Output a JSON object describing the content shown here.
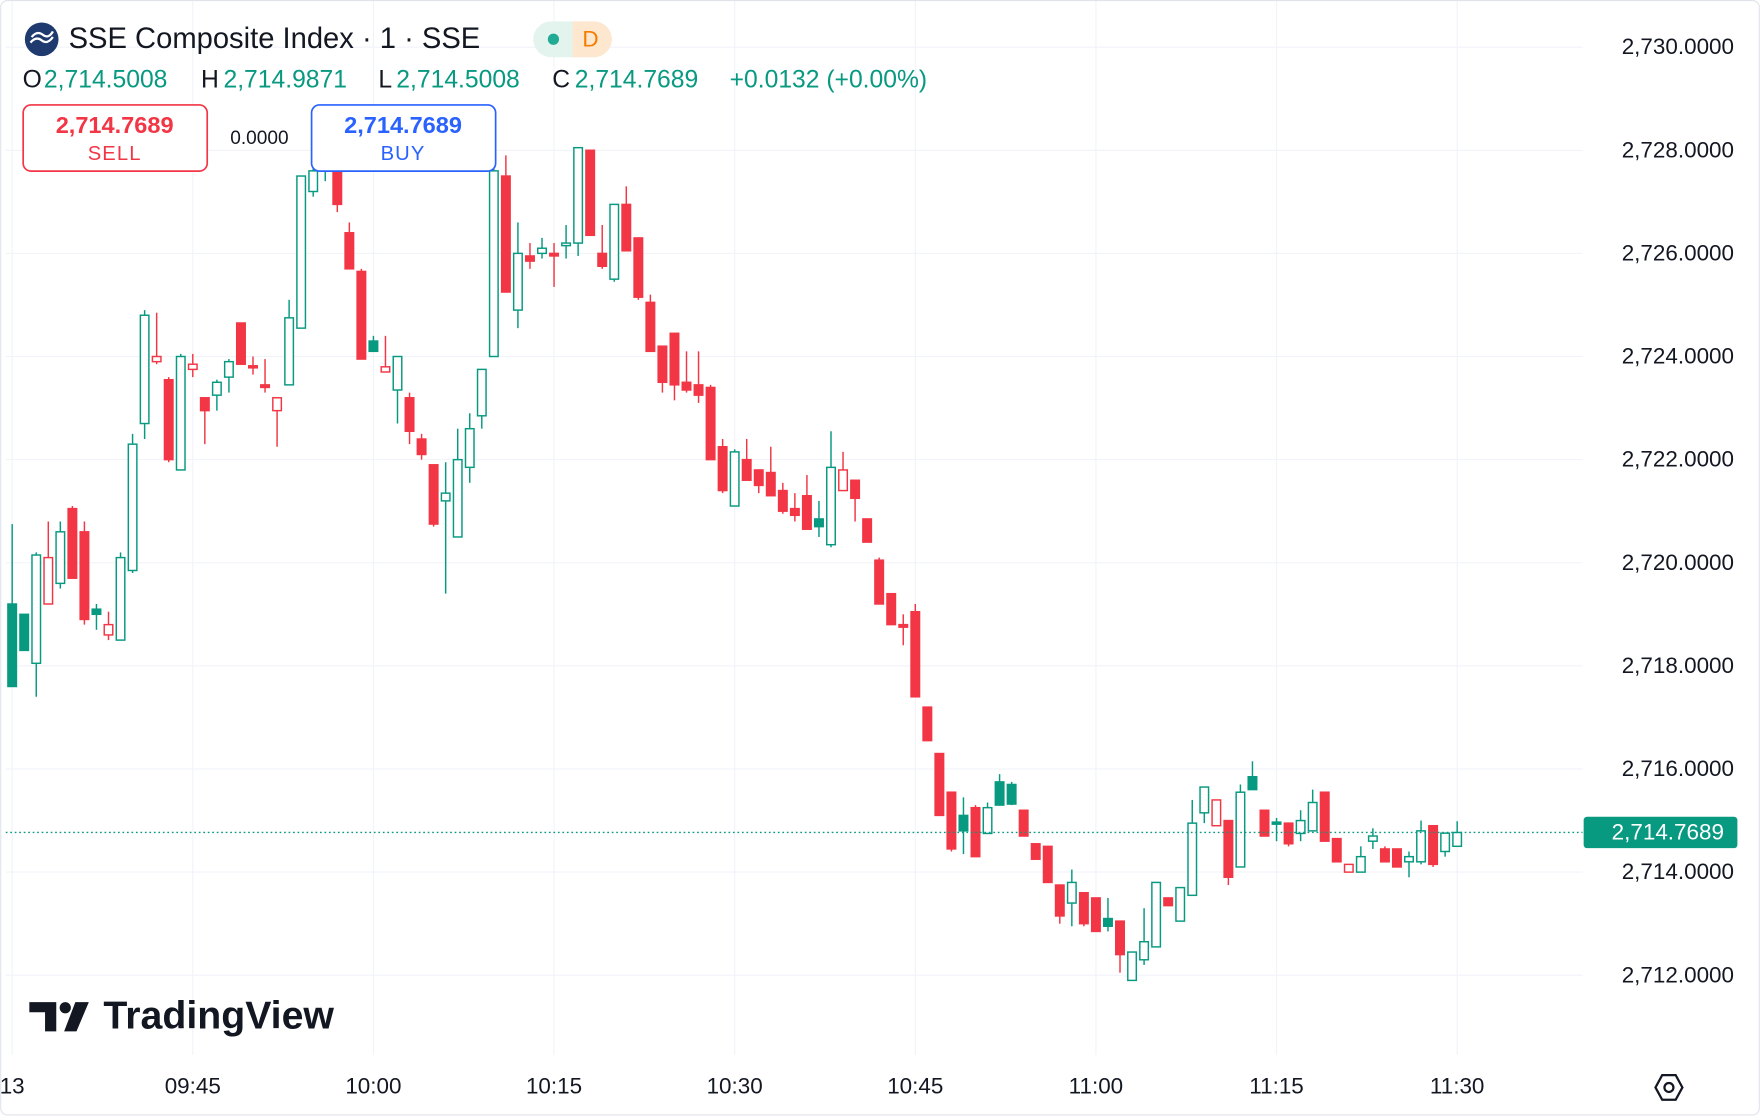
{
  "header": {
    "title": "SSE Composite Index · 1 · SSE",
    "interval_badge": "D",
    "ohlc": [
      {
        "label": "O",
        "value": "2,714.5008"
      },
      {
        "label": "H",
        "value": "2,714.9871"
      },
      {
        "label": "L",
        "value": "2,714.5008"
      },
      {
        "label": "C",
        "value": "2,714.7689"
      }
    ],
    "change": "+0.0132 (+0.00%)"
  },
  "trade": {
    "sell_price": "2,714.7689",
    "sell_label": "SELL",
    "spread": "0.0000",
    "buy_price": "2,714.7689",
    "buy_label": "BUY"
  },
  "brand": "TradingView",
  "chart_data": {
    "type": "candlestick",
    "up_color": "#089981",
    "down_color": "#f23645",
    "grid": true,
    "categories": [
      "09:30",
      "09:31",
      "09:32",
      "09:33",
      "09:34",
      "09:35",
      "09:36",
      "09:37",
      "09:38",
      "09:39",
      "09:40",
      "09:41",
      "09:42",
      "09:43",
      "09:44",
      "09:45",
      "09:46",
      "09:47",
      "09:48",
      "09:49",
      "09:50",
      "09:51",
      "09:52",
      "09:53",
      "09:54",
      "09:55",
      "09:56",
      "09:57",
      "09:58",
      "09:59",
      "10:00",
      "10:01",
      "10:02",
      "10:03",
      "10:04",
      "10:05",
      "10:06",
      "10:07",
      "10:08",
      "10:09",
      "10:10",
      "10:11",
      "10:12",
      "10:13",
      "10:14",
      "10:15",
      "10:16",
      "10:17",
      "10:18",
      "10:19",
      "10:20",
      "10:21",
      "10:22",
      "10:23",
      "10:24",
      "10:25",
      "10:26",
      "10:27",
      "10:28",
      "10:29",
      "10:30",
      "10:31",
      "10:32",
      "10:33",
      "10:34",
      "10:35",
      "10:36",
      "10:37",
      "10:38",
      "10:39",
      "10:40",
      "10:41",
      "10:42",
      "10:43",
      "10:44",
      "10:45",
      "10:46",
      "10:47",
      "10:48",
      "10:49",
      "10:50",
      "10:51",
      "10:52",
      "10:53",
      "10:54",
      "10:55",
      "10:56",
      "10:57",
      "10:58",
      "10:59",
      "11:00",
      "11:01",
      "11:02",
      "11:03",
      "11:04",
      "11:05",
      "11:06",
      "11:07",
      "11:08",
      "11:09",
      "11:10",
      "11:11",
      "11:12",
      "11:13",
      "11:14",
      "11:15",
      "11:16",
      "11:17",
      "11:18",
      "11:19",
      "11:20",
      "11:21",
      "11:22",
      "11:23",
      "11:24",
      "11:25",
      "11:26",
      "11:27",
      "11:28",
      "11:29",
      "11:30"
    ],
    "open": [
      2719.2,
      2719.0,
      2718.05,
      2719.2,
      2719.6,
      2721.05,
      2720.6,
      2719.1,
      2718.6,
      2718.5,
      2719.85,
      2722.7,
      2723.9,
      2723.55,
      2721.8,
      2723.75,
      2723.2,
      2723.25,
      2723.6,
      2724.65,
      2723.82,
      2723.45,
      2722.95,
      2723.45,
      2724.55,
      2727.2,
      2727.6,
      2727.6,
      2726.4,
      2725.65,
      2724.3,
      2723.7,
      2723.35,
      2723.2,
      2722.4,
      2721.9,
      2721.2,
      2720.5,
      2721.85,
      2722.85,
      2724.0,
      2727.5,
      2724.9,
      2725.95,
      2726.0,
      2726.0,
      2726.15,
      2726.2,
      2728.0,
      2726.0,
      2725.5,
      2726.95,
      2726.3,
      2725.05,
      2724.2,
      2724.45,
      2723.5,
      2723.45,
      2723.4,
      2722.25,
      2721.1,
      2722.0,
      2721.8,
      2721.75,
      2721.4,
      2721.05,
      2721.3,
      2720.85,
      2720.35,
      2721.4,
      2721.6,
      2720.85,
      2720.05,
      2719.4,
      2718.8,
      2719.05,
      2717.2,
      2716.3,
      2715.55,
      2715.1,
      2715.25,
      2714.75,
      2715.75,
      2715.7,
      2715.2,
      2714.55,
      2714.5,
      2713.75,
      2713.4,
      2713.6,
      2713.5,
      2713.1,
      2713.05,
      2711.9,
      2712.3,
      2712.55,
      2713.5,
      2713.05,
      2713.55,
      2715.15,
      2714.9,
      2715.0,
      2714.1,
      2715.85,
      2715.2,
      2714.97,
      2714.95,
      2714.75,
      2714.8,
      2715.55,
      2714.65,
      2714.0,
      2714.0,
      2714.6,
      2714.45,
      2714.45,
      2714.2,
      2714.2,
      2714.9,
      2714.4,
      2714.5008
    ],
    "high": [
      2720.75,
      2719.0,
      2720.2,
      2720.8,
      2720.8,
      2721.1,
      2720.8,
      2719.2,
      2719.05,
      2720.2,
      2722.5,
      2724.9,
      2724.85,
      2723.6,
      2724.05,
      2724.05,
      2723.2,
      2723.55,
      2723.95,
      2724.65,
      2724.0,
      2723.95,
      2723.2,
      2725.1,
      2727.5,
      2728.0,
      2728.1,
      2727.7,
      2726.6,
      2725.7,
      2724.4,
      2724.4,
      2724.0,
      2723.3,
      2722.5,
      2721.9,
      2721.95,
      2722.6,
      2722.9,
      2723.75,
      2727.9,
      2727.9,
      2726.6,
      2726.2,
      2726.3,
      2726.2,
      2726.55,
      2728.05,
      2728.0,
      2726.55,
      2726.95,
      2727.3,
      2726.3,
      2725.2,
      2724.2,
      2724.45,
      2724.1,
      2724.1,
      2723.45,
      2722.4,
      2722.2,
      2722.4,
      2721.8,
      2722.25,
      2721.55,
      2721.35,
      2721.7,
      2721.2,
      2722.55,
      2722.15,
      2721.6,
      2720.85,
      2720.1,
      2719.4,
      2719.0,
      2719.2,
      2717.2,
      2716.3,
      2715.55,
      2715.45,
      2715.3,
      2715.35,
      2715.9,
      2715.75,
      2715.2,
      2714.55,
      2714.5,
      2713.75,
      2714.05,
      2713.6,
      2713.5,
      2713.5,
      2713.05,
      2712.45,
      2713.3,
      2713.8,
      2713.5,
      2713.7,
      2715.4,
      2715.65,
      2715.4,
      2715.0,
      2715.7,
      2716.15,
      2715.2,
      2715.05,
      2714.95,
      2715.2,
      2715.6,
      2715.55,
      2714.65,
      2714.15,
      2714.5,
      2714.85,
      2714.5,
      2714.45,
      2714.4,
      2715.0,
      2714.9,
      2714.7557,
      2714.9871
    ],
    "low": [
      2717.6,
      2718.3,
      2717.4,
      2719.2,
      2719.5,
      2719.7,
      2718.8,
      2718.7,
      2718.5,
      2718.5,
      2719.8,
      2722.4,
      2723.85,
      2721.95,
      2721.8,
      2723.6,
      2722.3,
      2722.95,
      2723.3,
      2723.85,
      2723.65,
      2723.3,
      2722.25,
      2723.45,
      2724.55,
      2727.1,
      2727.4,
      2726.8,
      2725.7,
      2723.95,
      2724.1,
      2723.7,
      2722.7,
      2722.3,
      2722.0,
      2720.7,
      2719.4,
      2720.5,
      2721.55,
      2722.6,
      2724.0,
      2725.25,
      2724.55,
      2725.7,
      2725.9,
      2725.35,
      2725.9,
      2725.95,
      2726.35,
      2725.7,
      2725.45,
      2726.05,
      2725.1,
      2724.1,
      2723.3,
      2723.15,
      2723.3,
      2723.1,
      2722.0,
      2721.35,
      2721.1,
      2721.6,
      2721.35,
      2721.3,
      2720.95,
      2720.8,
      2720.65,
      2720.5,
      2720.3,
      2721.4,
      2720.8,
      2720.4,
      2719.2,
      2718.8,
      2718.4,
      2717.4,
      2716.55,
      2715.1,
      2714.4,
      2714.35,
      2714.3,
      2714.75,
      2715.3,
      2715.3,
      2714.7,
      2714.25,
      2713.8,
      2713.0,
      2712.95,
      2712.95,
      2712.85,
      2712.85,
      2712.05,
      2711.9,
      2712.2,
      2712.55,
      2713.35,
      2713.05,
      2713.55,
      2714.95,
      2714.9,
      2713.75,
      2714.1,
      2715.6,
      2714.7,
      2714.6,
      2714.5,
      2714.6,
      2714.8,
      2714.6,
      2714.2,
      2714.0,
      2714.0,
      2714.45,
      2714.2,
      2714.1,
      2713.9,
      2714.15,
      2714.1,
      2714.3,
      2714.5008
    ],
    "close": [
      2717.6,
      2718.3,
      2720.15,
      2720.1,
      2720.6,
      2719.7,
      2718.9,
      2719.0,
      2718.8,
      2720.1,
      2722.3,
      2724.8,
      2724.0,
      2722.0,
      2724.0,
      2723.85,
      2722.95,
      2723.5,
      2723.9,
      2723.85,
      2723.78,
      2723.4,
      2723.2,
      2724.75,
      2727.5,
      2727.6,
      2727.7,
      2726.95,
      2725.7,
      2723.95,
      2724.1,
      2723.8,
      2724.0,
      2722.55,
      2722.1,
      2720.75,
      2721.35,
      2722.0,
      2722.6,
      2723.75,
      2727.6,
      2725.25,
      2726.0,
      2725.85,
      2726.1,
      2725.95,
      2726.2,
      2728.05,
      2726.35,
      2725.75,
      2726.95,
      2726.05,
      2725.15,
      2724.1,
      2723.5,
      2723.45,
      2723.35,
      2723.25,
      2722.0,
      2721.4,
      2722.15,
      2721.6,
      2721.5,
      2721.3,
      2721.0,
      2720.92,
      2720.65,
      2720.7,
      2721.85,
      2721.8,
      2721.25,
      2720.4,
      2719.2,
      2718.8,
      2718.75,
      2717.4,
      2716.55,
      2715.1,
      2714.45,
      2714.8,
      2714.3,
      2715.25,
      2715.3,
      2715.32,
      2714.7,
      2714.25,
      2713.8,
      2713.15,
      2713.8,
      2713.0,
      2712.85,
      2712.95,
      2712.4,
      2712.45,
      2712.65,
      2713.8,
      2713.35,
      2713.7,
      2714.95,
      2715.65,
      2715.4,
      2713.9,
      2715.55,
      2715.6,
      2714.7,
      2714.93,
      2714.55,
      2715.0,
      2715.35,
      2714.6,
      2714.2,
      2714.15,
      2714.3,
      2714.7,
      2714.2,
      2714.1,
      2714.3,
      2714.8,
      2714.15,
      2714.7557,
      2714.7689
    ],
    "last_price_label": "2,714.7689",
    "ylim": [
      2710.455,
      2730.914
    ],
    "yticks": [
      {
        "value": 2712,
        "label": "2,712.0000"
      },
      {
        "value": 2714,
        "label": "2,714.0000"
      },
      {
        "value": 2716,
        "label": "2,716.0000"
      },
      {
        "value": 2718,
        "label": "2,718.0000"
      },
      {
        "value": 2720,
        "label": "2,720.0000"
      },
      {
        "value": 2722,
        "label": "2,722.0000"
      },
      {
        "value": 2724,
        "label": "2,724.0000"
      },
      {
        "value": 2726,
        "label": "2,726.0000"
      },
      {
        "value": 2728,
        "label": "2,728.0000"
      },
      {
        "value": 2730,
        "label": "2,730.0000"
      }
    ],
    "xticks": [
      {
        "value": "09:30",
        "label": "13"
      },
      "09:45",
      "10:00",
      "10:15",
      "10:30",
      "10:45",
      "11:00",
      "11:15",
      "11:30"
    ]
  }
}
